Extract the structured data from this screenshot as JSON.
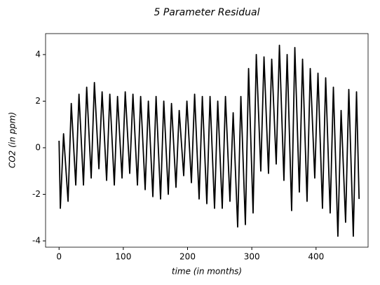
{
  "chart_data": {
    "type": "line",
    "title": "5 Parameter Residual",
    "x_label": "time (in months)",
    "y_label": "CO2 (in ppm)",
    "xlim": [
      -21,
      481
    ],
    "ylim": [
      -4.27,
      4.9
    ],
    "xticks": [
      0,
      100,
      200,
      300,
      400
    ],
    "yticks": [
      -4,
      -2,
      0,
      2,
      4
    ],
    "x": [
      0,
      2,
      7,
      14,
      19,
      26,
      31,
      38,
      43,
      50,
      55,
      62,
      67,
      74,
      79,
      86,
      91,
      98,
      103,
      110,
      115,
      122,
      127,
      134,
      139,
      146,
      151,
      158,
      163,
      170,
      175,
      182,
      187,
      194,
      199,
      206,
      211,
      218,
      223,
      230,
      235,
      242,
      247,
      254,
      259,
      266,
      271,
      278,
      283,
      290,
      295,
      302,
      307,
      314,
      319,
      326,
      331,
      338,
      343,
      350,
      355,
      362,
      367,
      374,
      379,
      386,
      391,
      398,
      403,
      410,
      415,
      422,
      427,
      434,
      439,
      446,
      451,
      458,
      463,
      467
    ],
    "series": [
      {
        "color": "#000000",
        "values": [
          0.3,
          -2.6,
          0.6,
          -2.3,
          1.9,
          -1.6,
          2.3,
          -1.6,
          2.6,
          -1.3,
          2.8,
          -0.9,
          2.4,
          -1.4,
          2.3,
          -1.6,
          2.2,
          -1.3,
          2.4,
          -1.1,
          2.3,
          -1.6,
          2.2,
          -1.8,
          2.0,
          -2.1,
          2.2,
          -2.2,
          2.0,
          -2.0,
          1.9,
          -1.7,
          1.6,
          -1.2,
          2.0,
          -1.5,
          2.3,
          -2.2,
          2.2,
          -2.4,
          2.2,
          -2.6,
          2.0,
          -2.6,
          2.2,
          -2.3,
          1.5,
          -3.4,
          2.2,
          -3.3,
          3.4,
          -2.8,
          4.0,
          -1.0,
          3.9,
          -1.1,
          3.8,
          -0.7,
          4.4,
          -1.4,
          4.0,
          -2.7,
          4.3,
          -1.9,
          3.8,
          -2.3,
          3.4,
          -1.3,
          3.2,
          -2.6,
          3.0,
          -2.8,
          2.6,
          -3.8,
          1.6,
          -3.2,
          2.5,
          -3.8,
          2.4,
          -2.2
        ]
      }
    ]
  }
}
